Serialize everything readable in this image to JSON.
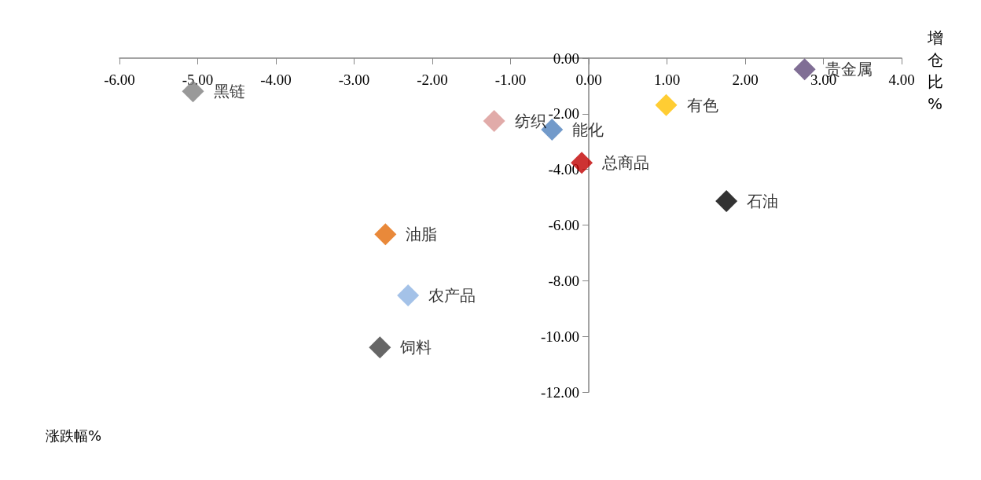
{
  "chart_data": {
    "type": "scatter",
    "xlabel": "涨跌幅%",
    "ylabel": "增仓比%",
    "marker": "diamond",
    "grid": false,
    "legend": false,
    "xlim": [
      -6,
      4
    ],
    "xticks": [
      {
        "value": -6,
        "label": "-6.00"
      },
      {
        "value": -5,
        "label": "-5.00"
      },
      {
        "value": -4,
        "label": "-4.00"
      },
      {
        "value": -3,
        "label": "-3.00"
      },
      {
        "value": -2,
        "label": "-2.00"
      },
      {
        "value": -1,
        "label": "-1.00"
      },
      {
        "value": 0,
        "label": "0.00"
      },
      {
        "value": 1,
        "label": "1.00"
      },
      {
        "value": 2,
        "label": "2.00"
      },
      {
        "value": 3,
        "label": "3.00"
      },
      {
        "value": 4,
        "label": "4.00"
      }
    ],
    "ylim": [
      -12,
      0
    ],
    "yticks": [
      {
        "value": -12,
        "label": "-12.00"
      },
      {
        "value": -10,
        "label": "-10.00"
      },
      {
        "value": -8,
        "label": "-8.00"
      },
      {
        "value": -6,
        "label": "-6.00"
      },
      {
        "value": -4,
        "label": "-4.00"
      },
      {
        "value": -2,
        "label": "-2.00"
      },
      {
        "value": 0,
        "label": "0.00"
      }
    ],
    "series": [
      {
        "name": "黑链",
        "color": "#7f7f7f",
        "x": [
          -5.06
        ],
        "values": [
          -1.19
        ]
      },
      {
        "name": "纺织",
        "color": "#d99694",
        "x": [
          -1.21
        ],
        "values": [
          -2.26
        ]
      },
      {
        "name": "能化",
        "color": "#4f81bd",
        "x": [
          -0.47
        ],
        "values": [
          -2.57
        ]
      },
      {
        "name": "总商品",
        "color": "#c00000",
        "x": [
          -0.09
        ],
        "values": [
          -3.76
        ]
      },
      {
        "name": "有色",
        "color": "#ffc000",
        "x": [
          0.99
        ],
        "values": [
          -1.69
        ]
      },
      {
        "name": "贵金属",
        "color": "#604a7b",
        "x": [
          2.76
        ],
        "values": [
          -0.4
        ]
      },
      {
        "name": "石油",
        "color": "#000000",
        "x": [
          1.76
        ],
        "values": [
          -5.14
        ]
      },
      {
        "name": "油脂",
        "color": "#e36c09",
        "x": [
          -2.6
        ],
        "values": [
          -6.33
        ]
      },
      {
        "name": "农产品",
        "color": "#8db3e2",
        "x": [
          -2.31
        ],
        "values": [
          -8.53
        ]
      },
      {
        "name": "饲料",
        "color": "#404040",
        "x": [
          -2.67
        ],
        "values": [
          -10.4
        ]
      }
    ]
  }
}
